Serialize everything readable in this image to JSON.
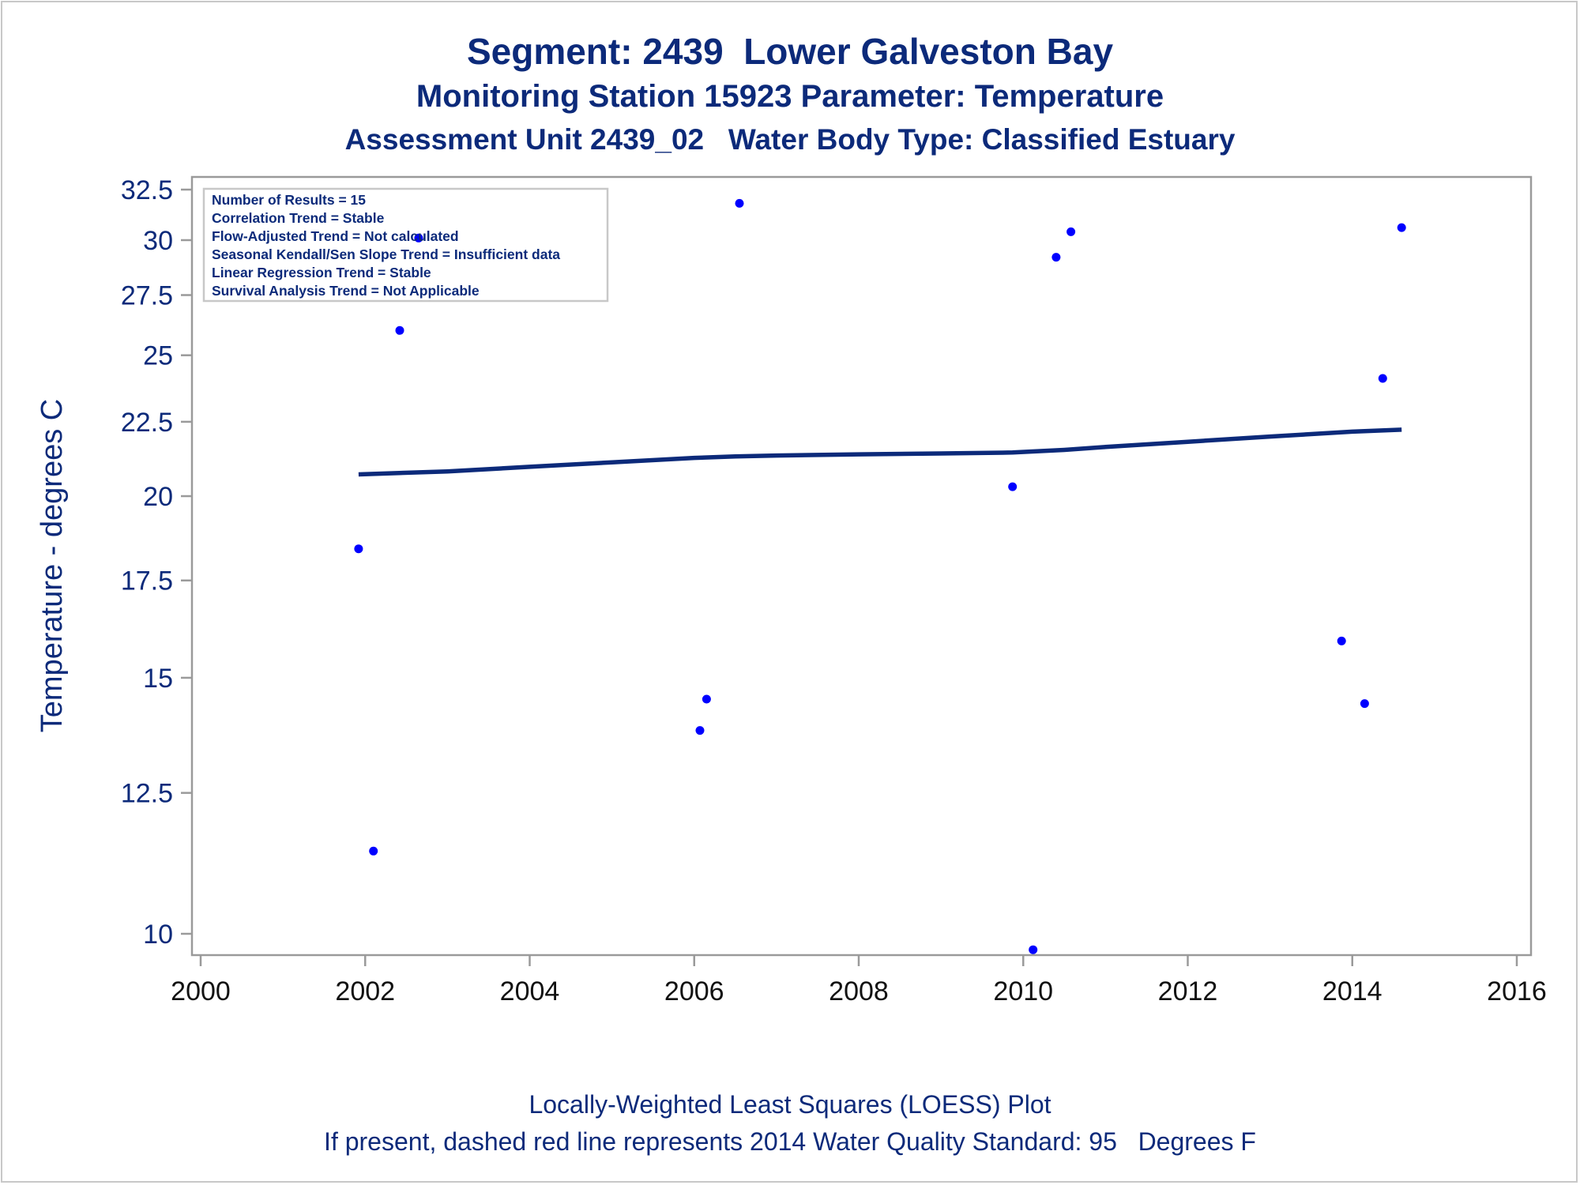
{
  "chart_data": {
    "type": "scatter",
    "title": "Segment: 2439  Lower Galveston Bay",
    "subtitle": "Monitoring Station 15923 Parameter: Temperature",
    "subtitle2": "Assessment Unit 2439_02   Water Body Type: Classified Estuary",
    "ylabel": "Temperature - degrees C",
    "xlabel": "",
    "y_scale": "log",
    "xlim": [
      2000,
      2016
    ],
    "ylim": [
      9.75,
      32.5
    ],
    "xticks": [
      2000,
      2002,
      2004,
      2006,
      2008,
      2010,
      2012,
      2014,
      2016
    ],
    "yticks": [
      10,
      12.5,
      15,
      17.5,
      20,
      22.5,
      25,
      27.5,
      30,
      32.5
    ],
    "ytick_labels": [
      "10",
      "12.5",
      "15",
      "17.5",
      "20",
      "22.5",
      "25",
      "27.5",
      "30",
      "32.5"
    ],
    "points": [
      {
        "x": 2001.92,
        "y": 18.4
      },
      {
        "x": 2002.1,
        "y": 11.4
      },
      {
        "x": 2002.42,
        "y": 26.0
      },
      {
        "x": 2002.65,
        "y": 30.1
      },
      {
        "x": 2006.07,
        "y": 13.8
      },
      {
        "x": 2006.15,
        "y": 14.5
      },
      {
        "x": 2006.55,
        "y": 31.8
      },
      {
        "x": 2009.87,
        "y": 20.3
      },
      {
        "x": 2010.12,
        "y": 9.75
      },
      {
        "x": 2010.4,
        "y": 29.2
      },
      {
        "x": 2010.58,
        "y": 30.4
      },
      {
        "x": 2013.87,
        "y": 15.9
      },
      {
        "x": 2014.15,
        "y": 14.4
      },
      {
        "x": 2014.37,
        "y": 24.1
      },
      {
        "x": 2014.6,
        "y": 30.6
      }
    ],
    "loess": {
      "x": [
        2001.92,
        2003,
        2004,
        2005,
        2006,
        2006.5,
        2007,
        2008,
        2009,
        2009.87,
        2010.5,
        2011,
        2012,
        2013,
        2014,
        2014.6
      ],
      "y": [
        20.7,
        20.8,
        20.95,
        21.1,
        21.25,
        21.3,
        21.33,
        21.37,
        21.4,
        21.43,
        21.52,
        21.62,
        21.8,
        21.98,
        22.15,
        22.22
      ]
    },
    "grid": false,
    "point_color": "#0000ff",
    "line_color": "#0c2a7a",
    "legend_box": [
      "Number of Results = 15",
      "Correlation Trend = Stable",
      "Flow-Adjusted Trend = Not calculated",
      "Seasonal Kendall/Sen Slope Trend = Insufficient data",
      "Linear Regression Trend = Stable",
      "Survival Analysis Trend = Not Applicable"
    ],
    "legend_placement": "top-left"
  },
  "footer": {
    "line1": "Locally-Weighted Least Squares (LOESS) Plot",
    "line2": "If present, dashed red line represents 2014 Water Quality Standard: 95   Degrees F"
  },
  "colors": {
    "text": "#0c2a7a",
    "axis": "#9a9a9a"
  }
}
